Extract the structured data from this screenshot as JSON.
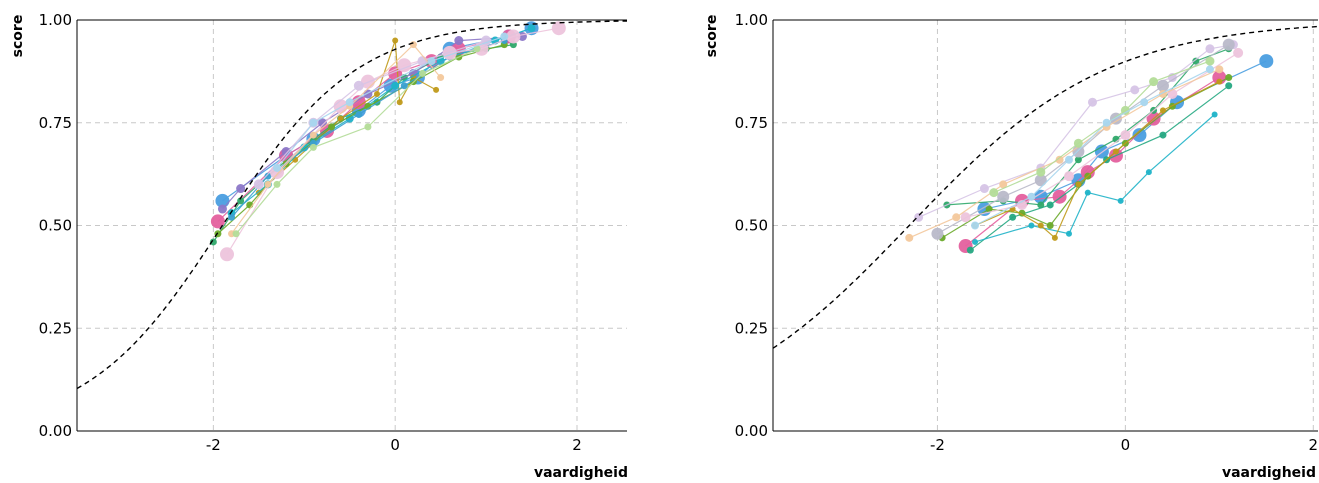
{
  "chart_data": [
    {
      "type": "line",
      "panel": "left",
      "xlabel": "vaardigheid",
      "ylabel": "score",
      "xlim": [
        -3.5,
        2.55
      ],
      "ylim": [
        0,
        1
      ],
      "xticks": [
        {
          "v": -2,
          "label": "-2"
        },
        {
          "v": 0,
          "label": "0"
        },
        {
          "v": 2,
          "label": "2"
        }
      ],
      "yticks": [
        {
          "v": 0,
          "label": "0.00"
        },
        {
          "v": 0.25,
          "label": "0.25"
        },
        {
          "v": 0.5,
          "label": "0.50"
        },
        {
          "v": 0.75,
          "label": "0.75"
        },
        {
          "v": 1,
          "label": "1.00"
        }
      ],
      "grid": true,
      "curve": {
        "style": "dashed",
        "color": "#000000",
        "a": 1.35,
        "b": -1.9,
        "c": 0
      },
      "series": [
        {
          "color": "#4a9ee0",
          "size": 7,
          "points": [
            [
              -1.9,
              0.56
            ],
            [
              -1.2,
              0.67
            ],
            [
              -0.9,
              0.71
            ],
            [
              -0.4,
              0.78
            ],
            [
              -0.05,
              0.84
            ],
            [
              0.25,
              0.86
            ],
            [
              0.6,
              0.93
            ],
            [
              1.25,
              0.96
            ],
            [
              1.5,
              0.98
            ]
          ]
        },
        {
          "color": "#e4609e",
          "size": 7,
          "points": [
            [
              -1.95,
              0.51
            ],
            [
              -1.2,
              0.67
            ],
            [
              -0.75,
              0.73
            ],
            [
              -0.4,
              0.8
            ],
            [
              0,
              0.87
            ],
            [
              0.4,
              0.9
            ],
            [
              0.7,
              0.93
            ],
            [
              1.25,
              0.96
            ]
          ]
        },
        {
          "color": "#2fa86a",
          "size": 3.5,
          "points": [
            [
              -2.0,
              0.46
            ],
            [
              -1.7,
              0.56
            ],
            [
              -1.3,
              0.64
            ],
            [
              -0.9,
              0.71
            ],
            [
              -0.6,
              0.76
            ],
            [
              -0.2,
              0.8
            ],
            [
              0.1,
              0.86
            ],
            [
              0.5,
              0.91
            ],
            [
              1.0,
              0.93
            ],
            [
              1.3,
              0.94
            ]
          ]
        },
        {
          "color": "#8d78c8",
          "size": 4.5,
          "points": [
            [
              -1.9,
              0.54
            ],
            [
              -1.7,
              0.59
            ],
            [
              -1.2,
              0.68
            ],
            [
              -0.8,
              0.75
            ],
            [
              -0.3,
              0.82
            ],
            [
              0.2,
              0.87
            ],
            [
              0.7,
              0.95
            ],
            [
              1.4,
              0.96
            ]
          ]
        },
        {
          "color": "#c09a1a",
          "size": 3,
          "points": [
            [
              -1.5,
              0.58
            ],
            [
              -1.1,
              0.66
            ],
            [
              -0.6,
              0.76
            ],
            [
              -0.2,
              0.82
            ],
            [
              0.0,
              0.95
            ],
            [
              0.05,
              0.8
            ],
            [
              0.2,
              0.86
            ],
            [
              0.45,
              0.83
            ]
          ]
        },
        {
          "color": "#1fb3c8",
          "size": 4,
          "points": [
            [
              -1.8,
              0.53
            ],
            [
              -1.4,
              0.6
            ],
            [
              -1.0,
              0.69
            ],
            [
              -0.5,
              0.76
            ],
            [
              0.0,
              0.84
            ],
            [
              0.5,
              0.9
            ],
            [
              1.1,
              0.95
            ],
            [
              1.5,
              0.98
            ]
          ]
        },
        {
          "color": "#6aaa2a",
          "size": 3.5,
          "points": [
            [
              -1.95,
              0.48
            ],
            [
              -1.6,
              0.55
            ],
            [
              -1.2,
              0.65
            ],
            [
              -0.7,
              0.74
            ],
            [
              -0.3,
              0.79
            ],
            [
              0.2,
              0.85
            ],
            [
              0.7,
              0.91
            ],
            [
              1.2,
              0.94
            ]
          ]
        },
        {
          "color": "#3aa0d0",
          "size": 3.5,
          "points": [
            [
              -1.8,
              0.52
            ],
            [
              -1.4,
              0.62
            ],
            [
              -0.9,
              0.7
            ],
            [
              -0.4,
              0.77
            ],
            [
              0.1,
              0.84
            ],
            [
              0.6,
              0.91
            ],
            [
              1.2,
              0.95
            ]
          ]
        },
        {
          "color": "#edc4dc",
          "size": 7,
          "points": [
            [
              -1.85,
              0.43
            ],
            [
              -1.3,
              0.63
            ],
            [
              -0.6,
              0.79
            ],
            [
              -0.3,
              0.85
            ],
            [
              0.1,
              0.89
            ],
            [
              0.6,
              0.92
            ],
            [
              0.95,
              0.93
            ],
            [
              1.3,
              0.96
            ],
            [
              1.8,
              0.98
            ]
          ]
        },
        {
          "color": "#d6c4e6",
          "size": 5,
          "points": [
            [
              -1.5,
              0.6
            ],
            [
              -0.9,
              0.75
            ],
            [
              -0.4,
              0.84
            ],
            [
              0.3,
              0.9
            ],
            [
              1.0,
              0.95
            ]
          ]
        },
        {
          "color": "#f3c89c",
          "size": 3.5,
          "points": [
            [
              -1.8,
              0.48
            ],
            [
              -1.4,
              0.6
            ],
            [
              -0.9,
              0.72
            ],
            [
              -0.5,
              0.79
            ],
            [
              0.2,
              0.94
            ],
            [
              0.5,
              0.86
            ]
          ]
        },
        {
          "color": "#b3dc98",
          "size": 3.5,
          "points": [
            [
              -1.75,
              0.48
            ],
            [
              -1.3,
              0.6
            ],
            [
              -0.9,
              0.69
            ],
            [
              -0.3,
              0.74
            ],
            [
              0.3,
              0.87
            ],
            [
              0.9,
              0.93
            ]
          ]
        },
        {
          "color": "#a8d6ee",
          "size": 4,
          "points": [
            [
              -1.3,
              0.64
            ],
            [
              -0.9,
              0.75
            ],
            [
              -0.5,
              0.8
            ],
            [
              0.4,
              0.9
            ],
            [
              1.2,
              0.96
            ]
          ]
        }
      ]
    },
    {
      "type": "line",
      "panel": "right",
      "xlabel": "vaardigheid",
      "ylabel": "score",
      "xlim": [
        -3.75,
        2.05
      ],
      "ylim": [
        0,
        1
      ],
      "xticks": [
        {
          "v": -2,
          "label": "-2"
        },
        {
          "v": 0,
          "label": "0"
        },
        {
          "v": 2,
          "label": "2"
        }
      ],
      "yticks": [
        {
          "v": 0,
          "label": "0.00"
        },
        {
          "v": 0.25,
          "label": "0.25"
        },
        {
          "v": 0.5,
          "label": "0.50"
        },
        {
          "v": 0.75,
          "label": "0.75"
        },
        {
          "v": 1,
          "label": "1.00"
        }
      ],
      "grid": true,
      "curve": {
        "style": "dashed",
        "color": "#000000",
        "a": 0.95,
        "b": -2.3,
        "c": 0
      },
      "series": [
        {
          "color": "#4a9ee0",
          "size": 7,
          "points": [
            [
              -1.5,
              0.54
            ],
            [
              -0.9,
              0.57
            ],
            [
              -0.5,
              0.61
            ],
            [
              -0.25,
              0.68
            ],
            [
              0.15,
              0.72
            ],
            [
              0.55,
              0.8
            ],
            [
              1.5,
              0.9
            ]
          ]
        },
        {
          "color": "#e4609e",
          "size": 7,
          "points": [
            [
              -1.7,
              0.45
            ],
            [
              -1.1,
              0.56
            ],
            [
              -0.7,
              0.57
            ],
            [
              -0.4,
              0.63
            ],
            [
              -0.1,
              0.67
            ],
            [
              0.3,
              0.76
            ],
            [
              1.0,
              0.86
            ]
          ]
        },
        {
          "color": "#2fa86a",
          "size": 3.5,
          "points": [
            [
              -1.9,
              0.55
            ],
            [
              -1.3,
              0.56
            ],
            [
              -0.9,
              0.55
            ],
            [
              -0.5,
              0.66
            ],
            [
              -0.1,
              0.71
            ],
            [
              0.3,
              0.78
            ],
            [
              0.75,
              0.9
            ],
            [
              1.1,
              0.93
            ]
          ]
        },
        {
          "color": "#25a882",
          "size": 3.5,
          "points": [
            [
              -1.65,
              0.44
            ],
            [
              -1.2,
              0.52
            ],
            [
              -0.8,
              0.55
            ],
            [
              -0.5,
              0.6
            ],
            [
              -0.2,
              0.66
            ],
            [
              0.4,
              0.72
            ],
            [
              1.1,
              0.84
            ]
          ]
        },
        {
          "color": "#1fb3c8",
          "size": 3,
          "points": [
            [
              -1.6,
              0.46
            ],
            [
              -1.0,
              0.5
            ],
            [
              -0.6,
              0.48
            ],
            [
              -0.4,
              0.58
            ],
            [
              -0.05,
              0.56
            ],
            [
              0.25,
              0.63
            ],
            [
              0.95,
              0.77
            ]
          ]
        },
        {
          "color": "#6aaa2a",
          "size": 3.5,
          "points": [
            [
              -1.95,
              0.47
            ],
            [
              -1.45,
              0.54
            ],
            [
              -1.1,
              0.53
            ],
            [
              -0.8,
              0.5
            ],
            [
              -0.4,
              0.62
            ],
            [
              0.0,
              0.7
            ],
            [
              0.5,
              0.79
            ],
            [
              1.1,
              0.86
            ]
          ]
        },
        {
          "color": "#c09a1a",
          "size": 3,
          "points": [
            [
              -1.6,
              0.5
            ],
            [
              -1.2,
              0.54
            ],
            [
              -0.9,
              0.5
            ],
            [
              -0.75,
              0.47
            ],
            [
              -0.5,
              0.6
            ],
            [
              -0.1,
              0.68
            ],
            [
              0.4,
              0.78
            ],
            [
              1.0,
              0.85
            ]
          ]
        },
        {
          "color": "#d6c4e6",
          "size": 4.5,
          "points": [
            [
              -2.2,
              0.52
            ],
            [
              -1.5,
              0.59
            ],
            [
              -0.9,
              0.64
            ],
            [
              -0.35,
              0.8
            ],
            [
              0.1,
              0.83
            ],
            [
              0.5,
              0.86
            ],
            [
              0.9,
              0.93
            ],
            [
              1.15,
              0.94
            ]
          ]
        },
        {
          "color": "#b9b9c9",
          "size": 6,
          "points": [
            [
              -2.0,
              0.48
            ],
            [
              -1.3,
              0.57
            ],
            [
              -0.9,
              0.61
            ],
            [
              -0.5,
              0.68
            ],
            [
              -0.1,
              0.76
            ],
            [
              0.4,
              0.84
            ],
            [
              1.1,
              0.94
            ]
          ]
        },
        {
          "color": "#edc4dc",
          "size": 5,
          "points": [
            [
              -1.7,
              0.52
            ],
            [
              -1.1,
              0.55
            ],
            [
              -0.6,
              0.62
            ],
            [
              0.0,
              0.72
            ],
            [
              0.5,
              0.82
            ],
            [
              1.2,
              0.92
            ]
          ]
        },
        {
          "color": "#f3c89c",
          "size": 4,
          "points": [
            [
              -2.3,
              0.47
            ],
            [
              -1.8,
              0.52
            ],
            [
              -1.3,
              0.6
            ],
            [
              -0.7,
              0.66
            ],
            [
              -0.2,
              0.74
            ],
            [
              0.4,
              0.82
            ],
            [
              1.0,
              0.88
            ]
          ]
        },
        {
          "color": "#b3dc98",
          "size": 4.5,
          "points": [
            [
              -1.4,
              0.58
            ],
            [
              -0.9,
              0.63
            ],
            [
              -0.5,
              0.7
            ],
            [
              0.0,
              0.78
            ],
            [
              0.3,
              0.85
            ],
            [
              0.9,
              0.9
            ]
          ]
        },
        {
          "color": "#a8d6ee",
          "size": 4,
          "points": [
            [
              -1.6,
              0.5
            ],
            [
              -1.0,
              0.57
            ],
            [
              -0.6,
              0.66
            ],
            [
              -0.2,
              0.75
            ],
            [
              0.2,
              0.8
            ],
            [
              0.9,
              0.88
            ]
          ]
        }
      ]
    }
  ]
}
